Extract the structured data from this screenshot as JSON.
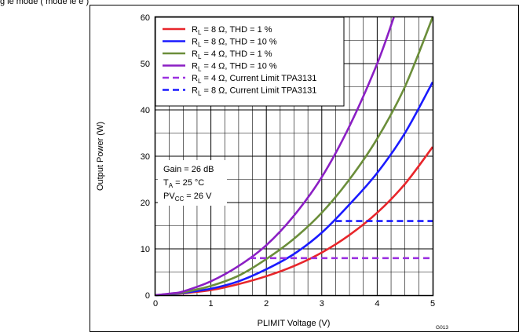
{
  "caption": "g   le   mode   (   mode        le   e               )",
  "chart_data": {
    "type": "line",
    "xlabel": "PLIMIT Voltage (V)",
    "ylabel": "Output Power (W)",
    "xlim": [
      0,
      5
    ],
    "ylim": [
      0,
      60
    ],
    "x_ticks": [
      "0",
      "1",
      "2",
      "3",
      "4",
      "5"
    ],
    "y_ticks": [
      "0",
      "10",
      "20",
      "30",
      "40",
      "50",
      "60"
    ],
    "grid": true,
    "legend_position": "top-left",
    "figure_id": "G013",
    "annotation_lines": [
      "Gain = 26 dB",
      "T",
      "A",
      " = 25 °C",
      "PV",
      "CC",
      " = 26 V"
    ],
    "series": [
      {
        "name": "R",
        "name_sub": "L",
        "name_rest": " = 8 Ω, THD = 1 %",
        "color": "#e8262b",
        "dash": "solid",
        "x": [
          0,
          0.3,
          0.5,
          1,
          1.5,
          2,
          2.5,
          3,
          3.5,
          4,
          4.5,
          5
        ],
        "y": [
          0,
          0.2,
          0.4,
          1.1,
          2.4,
          4.1,
          6.3,
          9.2,
          13.0,
          17.8,
          24.0,
          32.0
        ]
      },
      {
        "name": "R",
        "name_sub": "L",
        "name_rest": " = 8 Ω, THD = 10 %",
        "color": "#1a1aff",
        "dash": "solid",
        "x": [
          0,
          0.3,
          0.5,
          1,
          1.5,
          2,
          2.5,
          3,
          3.5,
          4,
          4.5,
          5
        ],
        "y": [
          0,
          0.2,
          0.5,
          1.4,
          3.0,
          5.6,
          8.9,
          13.5,
          19.6,
          26.4,
          35.0,
          46.0
        ]
      },
      {
        "name": "R",
        "name_sub": "L",
        "name_rest": " = 4 Ω, THD = 1 %",
        "color": "#6b8e3a",
        "dash": "solid",
        "x": [
          0,
          0.3,
          0.5,
          1,
          1.5,
          2,
          2.5,
          3,
          3.5,
          4,
          4.5,
          5
        ],
        "y": [
          0,
          0.3,
          0.6,
          2.0,
          4.2,
          7.8,
          12.2,
          17.8,
          25.0,
          33.8,
          45.0,
          60.0
        ]
      },
      {
        "name": "R",
        "name_sub": "L",
        "name_rest": " = 4 Ω, THD = 10 %",
        "color": "#8b1fc4",
        "dash": "solid",
        "x": [
          0,
          0.3,
          0.5,
          1,
          1.5,
          2,
          2.5,
          3,
          3.5,
          4,
          4.3
        ],
        "y": [
          0,
          0.4,
          0.8,
          3.0,
          6.3,
          10.8,
          17.2,
          25.5,
          36.5,
          50.0,
          60.0
        ]
      },
      {
        "name": "R",
        "name_sub": "L",
        "name_rest": " = 4 Ω, Current Limit TPA3131",
        "color": "#9b30e0",
        "dash": "dashed",
        "x": [
          1.7,
          5
        ],
        "y": [
          8,
          8
        ]
      },
      {
        "name": "R",
        "name_sub": "L",
        "name_rest": " = 8 Ω, Current Limit TPA3131",
        "color": "#1a1aff",
        "dash": "dashed",
        "x": [
          3.25,
          5
        ],
        "y": [
          16,
          16
        ]
      }
    ]
  }
}
